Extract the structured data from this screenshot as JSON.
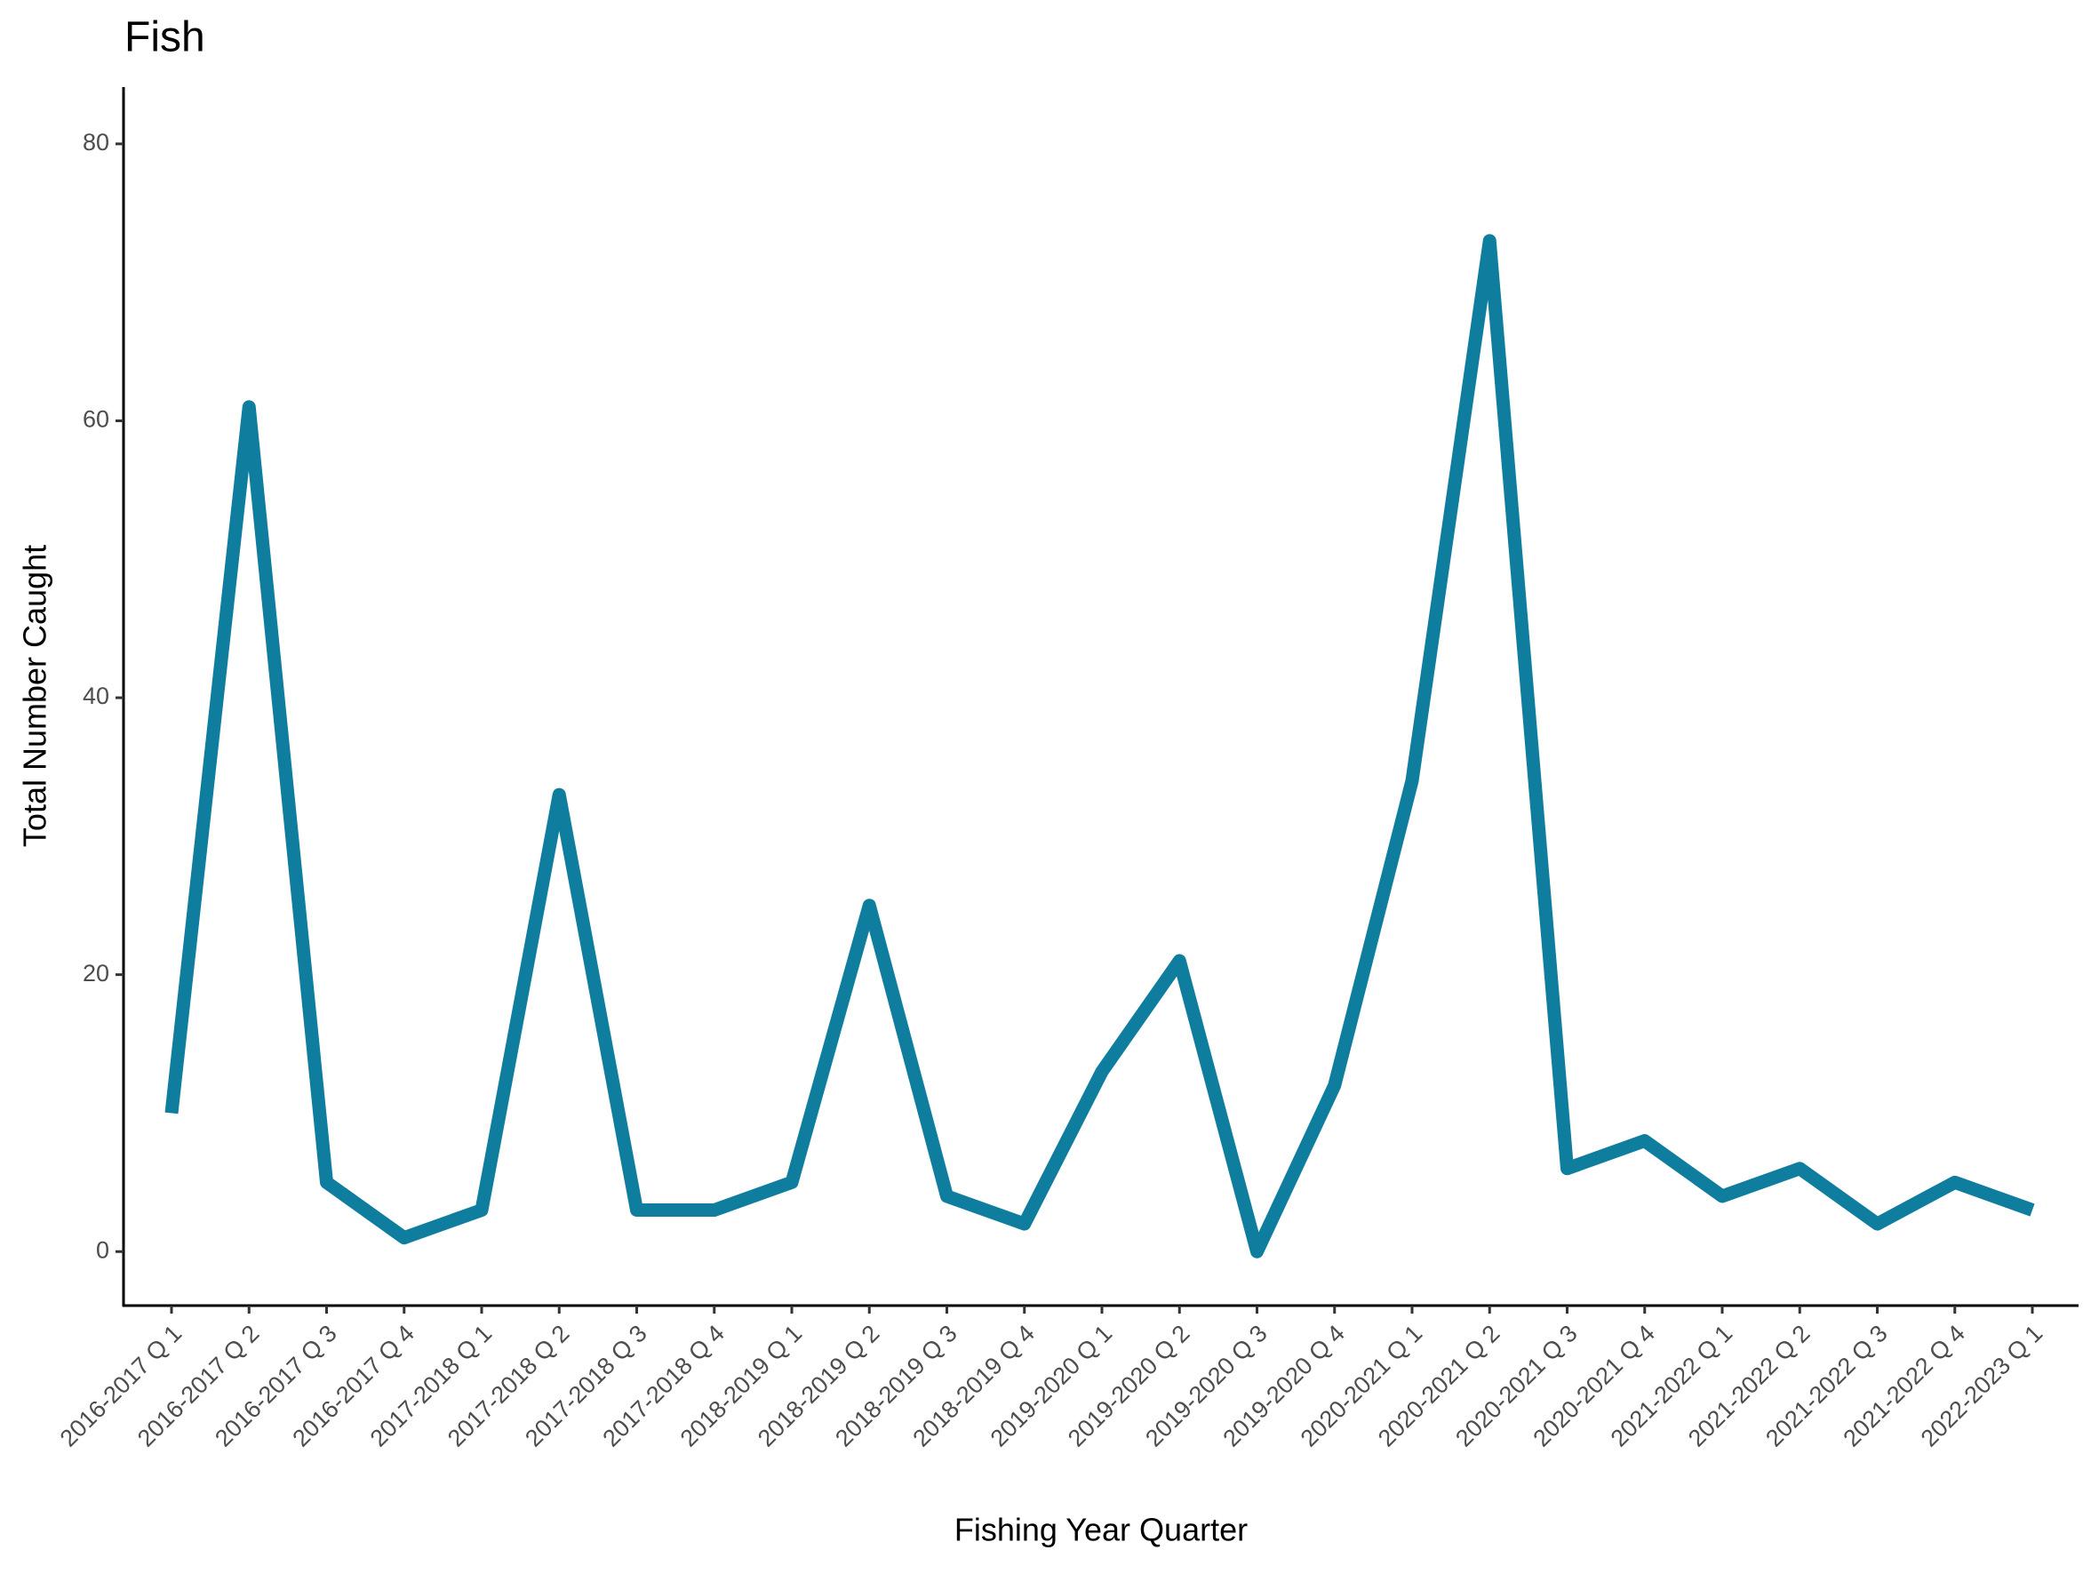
{
  "chart_data": {
    "type": "line",
    "title": "Fish",
    "x_label": "Fishing Year Quarter",
    "y_label": "Total Number Caught",
    "categories": [
      "2016-2017 Q 1",
      "2016-2017 Q 2",
      "2016-2017 Q 3",
      "2016-2017 Q 4",
      "2017-2018 Q 1",
      "2017-2018 Q 2",
      "2017-2018 Q 3",
      "2017-2018 Q 4",
      "2018-2019 Q 1",
      "2018-2019 Q 2",
      "2018-2019 Q 3",
      "2018-2019 Q 4",
      "2019-2020 Q 1",
      "2019-2020 Q 2",
      "2019-2020 Q 3",
      "2019-2020 Q 4",
      "2020-2021 Q 1",
      "2020-2021 Q 2",
      "2020-2021 Q 3",
      "2020-2021 Q 4",
      "2021-2022 Q 1",
      "2021-2022 Q 2",
      "2021-2022 Q 3",
      "2021-2022 Q 4",
      "2022-2023 Q 1"
    ],
    "values": [
      10,
      61,
      5,
      1,
      3,
      33,
      3,
      3,
      5,
      25,
      4,
      2,
      13,
      21,
      0,
      12,
      34,
      73,
      6,
      8,
      4,
      6,
      2,
      5,
      3
    ],
    "color": "#0f7e9e",
    "ylim": [
      -3.9,
      84.1
    ],
    "yticks": [
      0,
      20,
      40,
      60,
      80
    ],
    "grid": false
  }
}
